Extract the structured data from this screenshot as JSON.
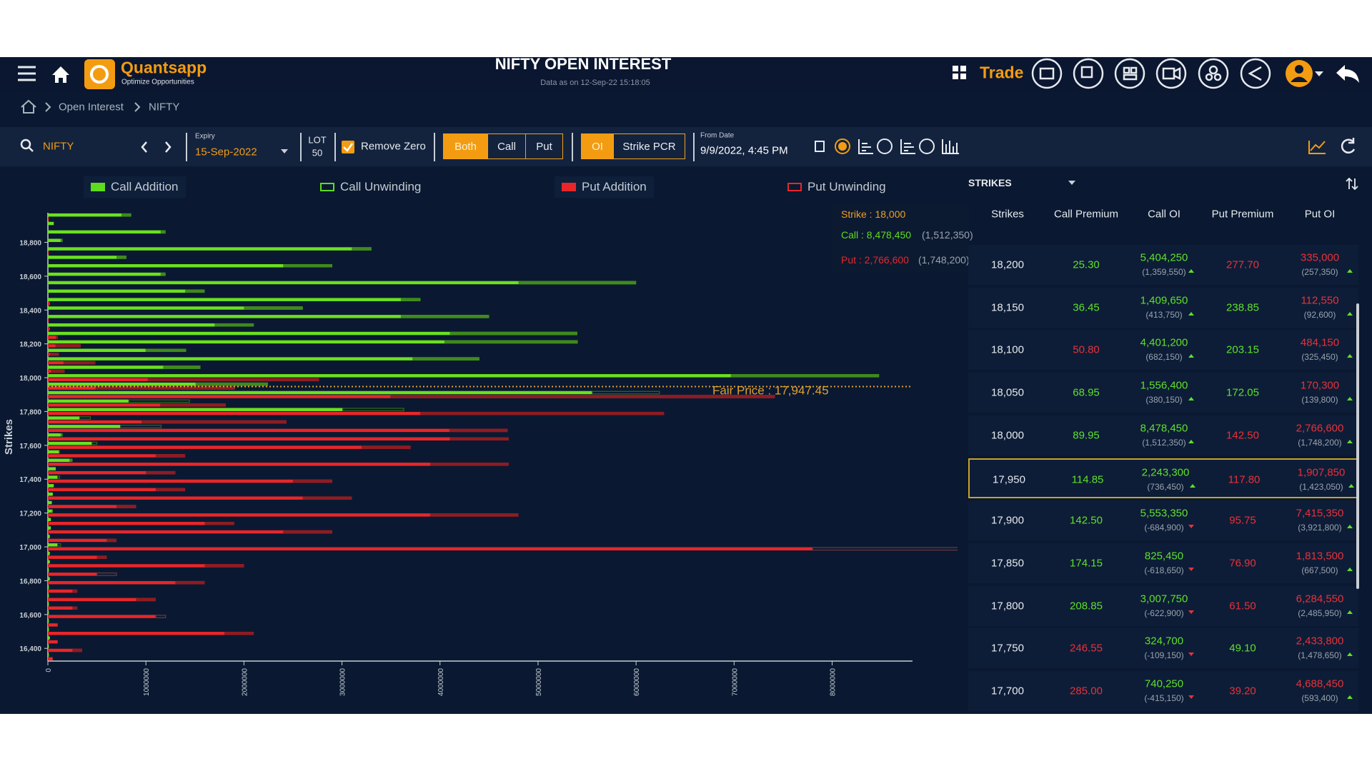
{
  "header": {
    "brand": "Quantsapp",
    "tagline": "Optimize Opportunities",
    "title": "NIFTY OPEN INTEREST",
    "subtitle": "Data as on 12-Sep-22 15:18:05",
    "trade": "Trade"
  },
  "breadcrumb": [
    "Open Interest",
    "NIFTY"
  ],
  "toolbar": {
    "search": "NIFTY",
    "expiry_label": "Expiry",
    "expiry": "15-Sep-2022",
    "lot_label": "LOT",
    "lot": "50",
    "remove_zero": "Remove Zero",
    "options": [
      "Both",
      "Call",
      "Put"
    ],
    "modes": [
      "OI",
      "Strike PCR"
    ],
    "from_date_label": "From Date",
    "from_date": "9/9/2022, 4:45 PM"
  },
  "chart_data": {
    "type": "bar",
    "orientation": "horizontal",
    "y_label": "Strikes",
    "legend": [
      {
        "name": "Call Addition",
        "color": "#5fdc1e",
        "filled": true
      },
      {
        "name": "Call Unwinding",
        "color": "#5fdc1e",
        "filled": false
      },
      {
        "name": "Put Addition",
        "color": "#e8262a",
        "filled": true
      },
      {
        "name": "Put Unwinding",
        "color": "#e8262a",
        "filled": false
      }
    ],
    "y": [
      18950,
      18900,
      18850,
      18800,
      18750,
      18700,
      18650,
      18600,
      18550,
      18500,
      18450,
      18400,
      18350,
      18300,
      18250,
      18200,
      18150,
      18100,
      18050,
      18000,
      17950,
      17900,
      17850,
      17800,
      17750,
      17700,
      17650,
      17600,
      17550,
      17500,
      17450,
      17400,
      17350,
      17300,
      17250,
      17200,
      17150,
      17100,
      17050,
      17000,
      16950,
      16900,
      16850,
      16800,
      16750,
      16700,
      16650,
      16600,
      16550,
      16500,
      16450,
      16400,
      16350
    ],
    "ylim": [
      16325,
      18975
    ],
    "yticks": [
      {
        "value": 18800,
        "label": "18,800"
      },
      {
        "value": 18600,
        "label": "18,600"
      },
      {
        "value": 18400,
        "label": "18,400"
      },
      {
        "value": 18200,
        "label": "18,200"
      },
      {
        "value": 18000,
        "label": "18,000"
      },
      {
        "value": 17800,
        "label": "17,800"
      },
      {
        "value": 17600,
        "label": "17,600"
      },
      {
        "value": 17400,
        "label": "17,400"
      },
      {
        "value": 17200,
        "label": "17,200"
      },
      {
        "value": 17000,
        "label": "17,000"
      },
      {
        "value": 16800,
        "label": "16,800"
      },
      {
        "value": 16600,
        "label": "16,600"
      },
      {
        "value": 16400,
        "label": "16,400"
      }
    ],
    "xlim": [
      0,
      8820000
    ],
    "xticks": [
      0,
      1000000,
      2000000,
      3000000,
      4000000,
      5000000,
      6000000,
      7000000,
      8000000
    ],
    "call": {
      "color": "#6be11e",
      "addition_color": "#3f8a1c",
      "unwinding_color": "#2f6a1a",
      "oi": [
        850000,
        60000,
        1200000,
        150000,
        3300000,
        800000,
        2900000,
        1200000,
        6000000,
        1600000,
        3800000,
        2600000,
        4500000,
        2100000,
        5400000,
        5404250,
        1409650,
        4401200,
        1556400,
        8478450,
        2243300,
        5553350,
        825450,
        3007750,
        324700,
        740250,
        150000,
        450000,
        120000,
        250000,
        80000,
        100000,
        60000,
        50000,
        40000,
        50000,
        30000,
        30000,
        20000,
        100000,
        20000,
        20000,
        10000,
        20000,
        10000,
        10000,
        10000,
        10000,
        10000,
        10000,
        20000,
        10000,
        10000
      ],
      "change": [
        100000,
        0,
        50000,
        20000,
        200000,
        100000,
        500000,
        50000,
        1200000,
        200000,
        200000,
        600000,
        900000,
        400000,
        1300000,
        1359550,
        413750,
        682150,
        380150,
        1512350,
        736450,
        -684900,
        -618650,
        -622900,
        -109150,
        -415150,
        20000,
        -50000,
        10000,
        30000,
        0,
        -20000,
        0,
        0,
        0,
        10000,
        0,
        0,
        0,
        -30000,
        0,
        0,
        0,
        0,
        0,
        0,
        0,
        0,
        0,
        0,
        0,
        0,
        0
      ]
    },
    "put": {
      "color": "#e8262a",
      "addition_color": "#8e1c22",
      "unwinding_color": "#6e3a40",
      "oi": [
        10000,
        0,
        0,
        0,
        10000,
        0,
        0,
        0,
        0,
        0,
        20000,
        0,
        10000,
        20000,
        100000,
        335000,
        112550,
        484150,
        170300,
        2766600,
        1907850,
        7415350,
        1813500,
        6284550,
        2433800,
        4688450,
        4700000,
        3700000,
        1400000,
        4700000,
        1300000,
        2900000,
        1400000,
        3100000,
        900000,
        4800000,
        1900000,
        2900000,
        700000,
        7800000,
        600000,
        2000000,
        500000,
        1600000,
        300000,
        1100000,
        300000,
        1100000,
        100000,
        2100000,
        100000,
        350000,
        50000
      ],
      "change": [
        0,
        0,
        0,
        0,
        0,
        0,
        0,
        0,
        0,
        0,
        0,
        0,
        0,
        0,
        20000,
        257350,
        92600,
        325450,
        139800,
        1748200,
        1423050,
        3921800,
        667500,
        2485950,
        1478650,
        593400,
        600000,
        500000,
        300000,
        800000,
        300000,
        400000,
        300000,
        500000,
        200000,
        900000,
        300000,
        500000,
        100000,
        -2500000,
        100000,
        400000,
        -200000,
        300000,
        50000,
        200000,
        50000,
        -100000,
        0,
        300000,
        0,
        100000,
        0
      ]
    },
    "fair_price": 17947.45,
    "fair_price_label": "Fair Price : 17,947.45",
    "tooltip": {
      "strike": "Strike : 18,000",
      "call": "Call : 8,478,450",
      "call_change": "(1,512,350)",
      "put": "Put : 2,766,600",
      "put_change": "(1,748,200)"
    }
  },
  "table": {
    "dropdown": "STRIKES",
    "columns": [
      "Strikes",
      "Call Premium",
      "Call OI",
      "Put Premium",
      "Put OI"
    ],
    "highlight_row": 5,
    "rows": [
      {
        "strike": "18,200",
        "call_premium": "25.30",
        "call_premium_trend": "up",
        "call_oi": "5,404,250",
        "call_oi_change": "(1,359,550)",
        "call_trend": "up",
        "put_premium": "277.70",
        "put_premium_trend": "down",
        "put_oi": "335,000",
        "put_oi_change": "(257,350)",
        "put_trend": "up"
      },
      {
        "strike": "18,150",
        "call_premium": "36.45",
        "call_premium_trend": "up",
        "call_oi": "1,409,650",
        "call_oi_change": "(413,750)",
        "call_trend": "up",
        "put_premium": "238.85",
        "put_premium_trend": "up",
        "put_oi": "112,550",
        "put_oi_change": "(92,600)",
        "put_trend": "up"
      },
      {
        "strike": "18,100",
        "call_premium": "50.80",
        "call_premium_trend": "down",
        "call_oi": "4,401,200",
        "call_oi_change": "(682,150)",
        "call_trend": "up",
        "put_premium": "203.15",
        "put_premium_trend": "up",
        "put_oi": "484,150",
        "put_oi_change": "(325,450)",
        "put_trend": "up"
      },
      {
        "strike": "18,050",
        "call_premium": "68.95",
        "call_premium_trend": "up",
        "call_oi": "1,556,400",
        "call_oi_change": "(380,150)",
        "call_trend": "up",
        "put_premium": "172.05",
        "put_premium_trend": "up",
        "put_oi": "170,300",
        "put_oi_change": "(139,800)",
        "put_trend": "up"
      },
      {
        "strike": "18,000",
        "call_premium": "89.95",
        "call_premium_trend": "up",
        "call_oi": "8,478,450",
        "call_oi_change": "(1,512,350)",
        "call_trend": "up",
        "put_premium": "142.50",
        "put_premium_trend": "down",
        "put_oi": "2,766,600",
        "put_oi_change": "(1,748,200)",
        "put_trend": "up"
      },
      {
        "strike": "17,950",
        "call_premium": "114.85",
        "call_premium_trend": "up",
        "call_oi": "2,243,300",
        "call_oi_change": "(736,450)",
        "call_trend": "up",
        "put_premium": "117.80",
        "put_premium_trend": "down",
        "put_oi": "1,907,850",
        "put_oi_change": "(1,423,050)",
        "put_trend": "up"
      },
      {
        "strike": "17,900",
        "call_premium": "142.50",
        "call_premium_trend": "up",
        "call_oi": "5,553,350",
        "call_oi_change": "(-684,900)",
        "call_trend": "down",
        "put_premium": "95.75",
        "put_premium_trend": "down",
        "put_oi": "7,415,350",
        "put_oi_change": "(3,921,800)",
        "put_trend": "up"
      },
      {
        "strike": "17,850",
        "call_premium": "174.15",
        "call_premium_trend": "up",
        "call_oi": "825,450",
        "call_oi_change": "(-618,650)",
        "call_trend": "down",
        "put_premium": "76.90",
        "put_premium_trend": "down",
        "put_oi": "1,813,500",
        "put_oi_change": "(667,500)",
        "put_trend": "up"
      },
      {
        "strike": "17,800",
        "call_premium": "208.85",
        "call_premium_trend": "up",
        "call_oi": "3,007,750",
        "call_oi_change": "(-622,900)",
        "call_trend": "down",
        "put_premium": "61.50",
        "put_premium_trend": "down",
        "put_oi": "6,284,550",
        "put_oi_change": "(2,485,950)",
        "put_trend": "up"
      },
      {
        "strike": "17,750",
        "call_premium": "246.55",
        "call_premium_trend": "down",
        "call_oi": "324,700",
        "call_oi_change": "(-109,150)",
        "call_trend": "down",
        "put_premium": "49.10",
        "put_premium_trend": "up",
        "put_oi": "2,433,800",
        "put_oi_change": "(1,478,650)",
        "put_trend": "up"
      },
      {
        "strike": "17,700",
        "call_premium": "285.00",
        "call_premium_trend": "down",
        "call_oi": "740,250",
        "call_oi_change": "(-415,150)",
        "call_trend": "down",
        "put_premium": "39.20",
        "put_premium_trend": "down",
        "put_oi": "4,688,450",
        "put_oi_change": "(593,400)",
        "put_trend": "up"
      }
    ]
  }
}
